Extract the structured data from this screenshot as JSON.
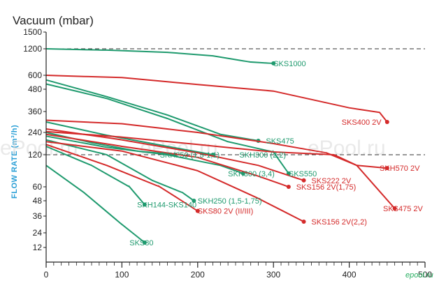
{
  "watermark": "ePool.ru",
  "logo": "epool.ru",
  "colors": {
    "green": "#1f9a6e",
    "red": "#d42a2a",
    "axis": "#222222",
    "ylabel": "#2a9fd6"
  },
  "chart_data": {
    "type": "line",
    "title": "Vacuum (mbar)",
    "ylabel": "FLOW RATE (m³/h)",
    "xlabel": "",
    "xlim": [
      0,
      500
    ],
    "x_ticks": [
      "0",
      "100",
      "200",
      "300",
      "400",
      "500"
    ],
    "y_ticks": [
      "1500",
      "1200",
      "600",
      "480",
      "360",
      "240",
      "120",
      "60",
      "48",
      "36",
      "24",
      "12"
    ],
    "dashed_lines_at": [
      "1200",
      "120"
    ],
    "series": [
      {
        "name": "SKS1000",
        "color": "green",
        "label_at": 300,
        "points": [
          [
            0,
            1200
          ],
          [
            80,
            1170
          ],
          [
            160,
            1120
          ],
          [
            220,
            1040
          ],
          [
            270,
            900
          ],
          [
            300,
            870
          ]
        ]
      },
      {
        "name": "SKS475",
        "color": "green",
        "label_at": 290,
        "points": [
          [
            0,
            560
          ],
          [
            80,
            440
          ],
          [
            160,
            340
          ],
          [
            230,
            230
          ],
          [
            280,
            195
          ]
        ]
      },
      {
        "name": "SKS550",
        "color": "green",
        "label_at": 320,
        "points": [
          [
            0,
            525
          ],
          [
            80,
            430
          ],
          [
            160,
            320
          ],
          [
            240,
            190
          ],
          [
            300,
            135
          ],
          [
            320,
            85
          ]
        ]
      },
      {
        "name": "SKH300 (2,2)",
        "color": "green",
        "label_at": 255,
        "points": [
          [
            0,
            300
          ],
          [
            80,
            225
          ],
          [
            160,
            165
          ],
          [
            220,
            120
          ]
        ]
      },
      {
        "name": "SKH250 (1,3-1,1)",
        "color": "green",
        "label_at": 150,
        "points": [
          [
            0,
            240
          ],
          [
            60,
            185
          ],
          [
            120,
            140
          ],
          [
            170,
            120
          ]
        ]
      },
      {
        "name": "SKH300 (3,4)",
        "color": "green",
        "label_at": 240,
        "points": [
          [
            0,
            220
          ],
          [
            80,
            160
          ],
          [
            160,
            120
          ],
          [
            230,
            100
          ],
          [
            260,
            85
          ]
        ]
      },
      {
        "name": "SKH144-SKS140",
        "color": "green",
        "label_at": 120,
        "points": [
          [
            0,
            165
          ],
          [
            60,
            100
          ],
          [
            110,
            60
          ],
          [
            130,
            45
          ]
        ]
      },
      {
        "name": "SKH250 (1,5-1,75)",
        "color": "green",
        "label_at": 200,
        "points": [
          [
            0,
            200
          ],
          [
            80,
            120
          ],
          [
            140,
            72
          ],
          [
            180,
            55
          ],
          [
            195,
            48
          ]
        ]
      },
      {
        "name": "SKS80",
        "color": "green",
        "label_at": 110,
        "points": [
          [
            0,
            100
          ],
          [
            50,
            55
          ],
          [
            100,
            30
          ],
          [
            130,
            16
          ]
        ]
      },
      {
        "name": "SKS400 2V",
        "color": "red",
        "label_at": 390,
        "points": [
          [
            0,
            600
          ],
          [
            100,
            580
          ],
          [
            200,
            520
          ],
          [
            300,
            470
          ],
          [
            400,
            380
          ],
          [
            440,
            355
          ],
          [
            450,
            300
          ]
        ]
      },
      {
        "name": "SKH570 2V",
        "color": "red",
        "label_at": 440,
        "points": [
          [
            0,
            310
          ],
          [
            100,
            290
          ],
          [
            200,
            240
          ],
          [
            300,
            180
          ],
          [
            370,
            130
          ],
          [
            410,
            100
          ],
          [
            450,
            95
          ]
        ]
      },
      {
        "name": "SKS222 2V",
        "color": "red",
        "label_at": 350,
        "points": [
          [
            0,
            260
          ],
          [
            100,
            200
          ],
          [
            200,
            130
          ],
          [
            280,
            100
          ],
          [
            340,
            72
          ]
        ]
      },
      {
        "name": "SKS475 2V",
        "color": "red",
        "label_at": 460,
        "points": [
          [
            0,
            245
          ],
          [
            100,
            215
          ],
          [
            200,
            175
          ],
          [
            300,
            135
          ],
          [
            380,
            120
          ],
          [
            410,
            100
          ],
          [
            460,
            42
          ]
        ]
      },
      {
        "name": "SKS156 2V(1,75)",
        "color": "red",
        "label_at": 330,
        "points": [
          [
            0,
            230
          ],
          [
            100,
            165
          ],
          [
            200,
            115
          ],
          [
            280,
            80
          ],
          [
            320,
            60
          ]
        ]
      },
      {
        "name": "SKS80 2V (II/III)",
        "color": "red",
        "label_at": 200,
        "points": [
          [
            0,
            175
          ],
          [
            80,
            100
          ],
          [
            150,
            60
          ],
          [
            200,
            40
          ]
        ]
      },
      {
        "name": "SKS156 2V(2,2)",
        "color": "red",
        "label_at": 350,
        "points": [
          [
            0,
            190
          ],
          [
            100,
            140
          ],
          [
            200,
            90
          ],
          [
            280,
            50
          ],
          [
            340,
            32
          ]
        ]
      }
    ]
  }
}
